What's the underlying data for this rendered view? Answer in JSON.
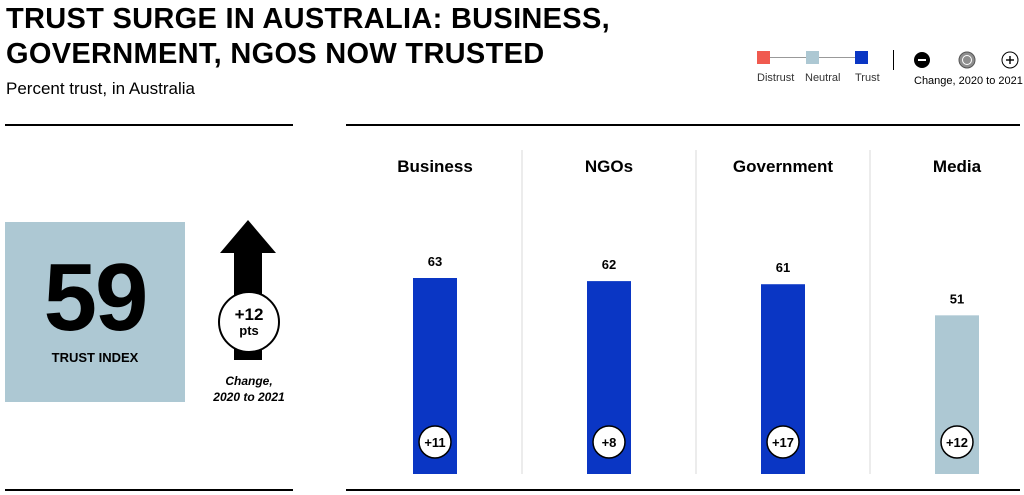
{
  "title": {
    "line1": "TRUST SURGE IN AUSTRALIA: BUSINESS,",
    "line2": "GOVERNMENT, NGOS NOW TRUSTED"
  },
  "subtitle": "Percent trust, in Australia",
  "legend": {
    "items": [
      {
        "label": "Distrust",
        "color": "#f05a4f"
      },
      {
        "label": "Neutral",
        "color": "#adc8d3"
      },
      {
        "label": "Trust",
        "color": "#0a36c4"
      }
    ],
    "change_label": "Change, 2020 to 2021"
  },
  "trust_index": {
    "value": "59",
    "label": "TRUST INDEX",
    "change_value": "+12",
    "change_unit": "pts",
    "change_caption_line1": "Change,",
    "change_caption_line2": "2020 to 2021"
  },
  "colors": {
    "trust": "#0a36c4",
    "neutral": "#adc8d3",
    "distrust": "#f05a4f"
  },
  "chart_data": {
    "type": "bar",
    "categories": [
      "Business",
      "NGOs",
      "Government",
      "Media"
    ],
    "values": [
      63,
      62,
      61,
      51
    ],
    "changes": [
      "+11",
      "+8",
      "+17",
      "+12"
    ],
    "zones": [
      "trust",
      "trust",
      "trust",
      "neutral"
    ],
    "ylim": [
      0,
      100
    ]
  }
}
